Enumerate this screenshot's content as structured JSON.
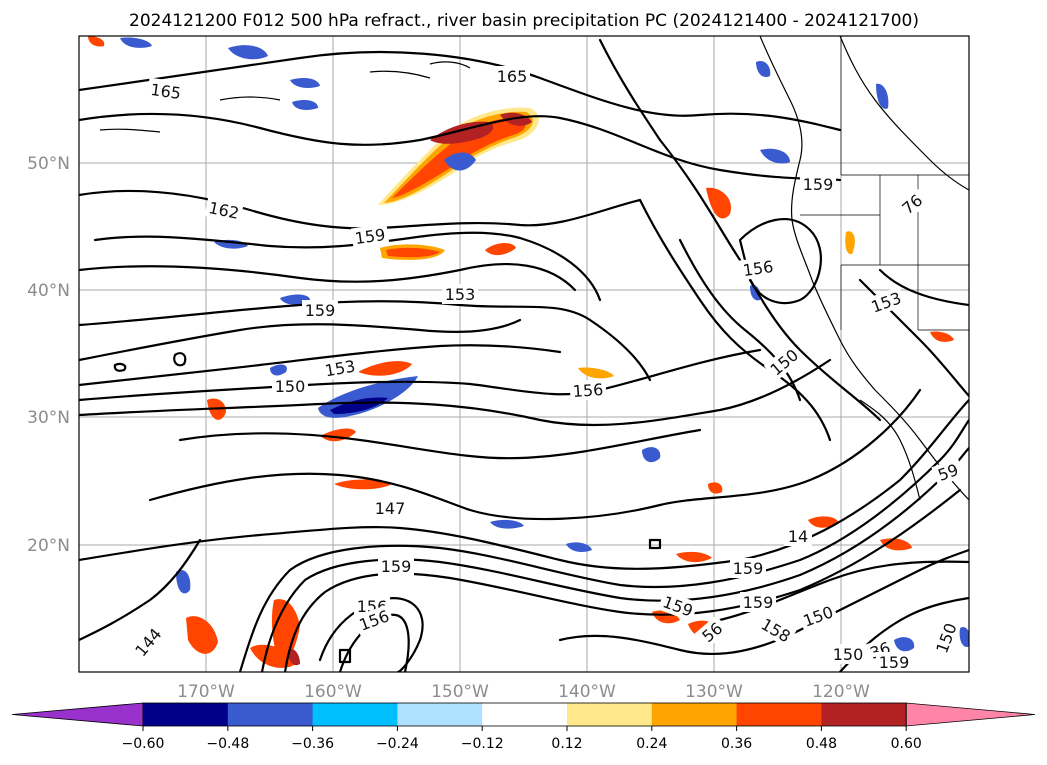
{
  "title": "2024121200 F012 500 hPa refract., river basin precipitation PC (2024121400 - 2024121700)",
  "lon_labels": [
    "170°W",
    "160°W",
    "150°W",
    "140°W",
    "130°W",
    "120°W"
  ],
  "lat_labels": [
    "50°N",
    "40°N",
    "30°N",
    "20°N"
  ],
  "colorbar": {
    "colors": [
      "#9932cc",
      "#00008b",
      "#3a5bd0",
      "#00bfff",
      "#b0e0ff",
      "#ffffff",
      "#ffe88a",
      "#ffa500",
      "#ff4500",
      "#b22222",
      "#ff85a8"
    ],
    "ticks": [
      "−0.60",
      "−0.48",
      "−0.36",
      "−0.24",
      "−0.12",
      "0.12",
      "0.24",
      "0.36",
      "0.48",
      "0.60"
    ]
  },
  "contour_labels": [
    {
      "text": "165",
      "kind": "contour-label"
    },
    {
      "text": "165",
      "kind": "contour-label"
    },
    {
      "text": "162",
      "kind": "contour-label"
    },
    {
      "text": "159",
      "kind": "contour-label"
    },
    {
      "text": "159",
      "kind": "contour-label"
    },
    {
      "text": "153",
      "kind": "contour-label"
    },
    {
      "text": "159",
      "kind": "contour-label"
    },
    {
      "text": "153",
      "kind": "contour-label"
    },
    {
      "text": "150",
      "kind": "contour-label"
    },
    {
      "text": "156",
      "kind": "contour-label"
    },
    {
      "text": "156",
      "kind": "contour-label"
    },
    {
      "text": "150",
      "kind": "contour-label"
    },
    {
      "text": "153",
      "kind": "contour-label"
    },
    {
      "text": "76",
      "kind": "contour-label"
    },
    {
      "text": "59",
      "kind": "contour-label"
    },
    {
      "text": "147",
      "kind": "contour-label"
    },
    {
      "text": "159",
      "kind": "contour-label"
    },
    {
      "text": "14",
      "kind": "contour-label"
    },
    {
      "text": "159",
      "kind": "contour-label"
    },
    {
      "text": "156",
      "kind": "contour-label"
    },
    {
      "text": "159",
      "kind": "contour-label"
    },
    {
      "text": "159",
      "kind": "contour-label"
    },
    {
      "text": "156",
      "kind": "contour-label"
    },
    {
      "text": "159",
      "kind": "contour-label"
    },
    {
      "text": "158",
      "kind": "contour-label"
    },
    {
      "text": "150",
      "kind": "contour-label"
    },
    {
      "text": "144",
      "kind": "contour-label"
    },
    {
      "text": "150",
      "kind": "contour-label"
    },
    {
      "text": "36",
      "kind": "contour-label"
    },
    {
      "text": "159",
      "kind": "contour-label"
    },
    {
      "text": "150",
      "kind": "contour-label"
    },
    {
      "text": "56",
      "kind": "contour-label"
    },
    {
      "text": "156",
      "kind": "contour-label"
    },
    {
      "text": "159",
      "kind": "contour-label"
    }
  ]
}
